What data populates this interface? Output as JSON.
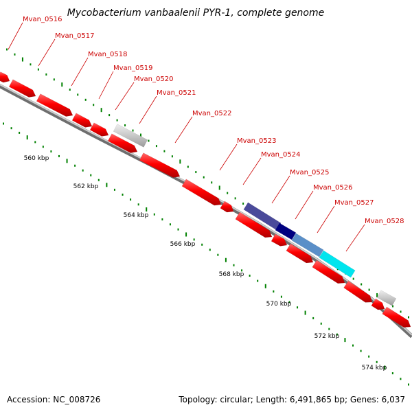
{
  "title": "Mycobacterium vanbaalenii PYR-1, complete genome",
  "footer": {
    "accession": "Accession: NC_008726",
    "summary": "Topology: circular; Length: 6,491,865 bp; Genes: 6,037"
  },
  "gene_labels": [
    "Mvan_0516",
    "Mvan_0517",
    "Mvan_0518",
    "Mvan_0519",
    "Mvan_0520",
    "Mvan_0521",
    "Mvan_0522",
    "Mvan_0523",
    "Mvan_0524",
    "Mvan_0525",
    "Mvan_0526",
    "Mvan_0527",
    "Mvan_0528"
  ],
  "kbp_labels": [
    "560 kbp",
    "562 kbp",
    "564 kbp",
    "566 kbp",
    "568 kbp",
    "570 kbp",
    "572 kbp",
    "574 kbp"
  ],
  "colors": {
    "gene_forward": "#ff0000",
    "gene_gray": "#c8c8c8",
    "gene_navy_light": "#4a4a9a",
    "gene_navy": "#000080",
    "gene_steel": "#5a8fc8",
    "gene_cyan": "#00e5ee",
    "backbone": "#8a8a8a",
    "ticks": "#008000",
    "label_text": "#cc0000"
  }
}
